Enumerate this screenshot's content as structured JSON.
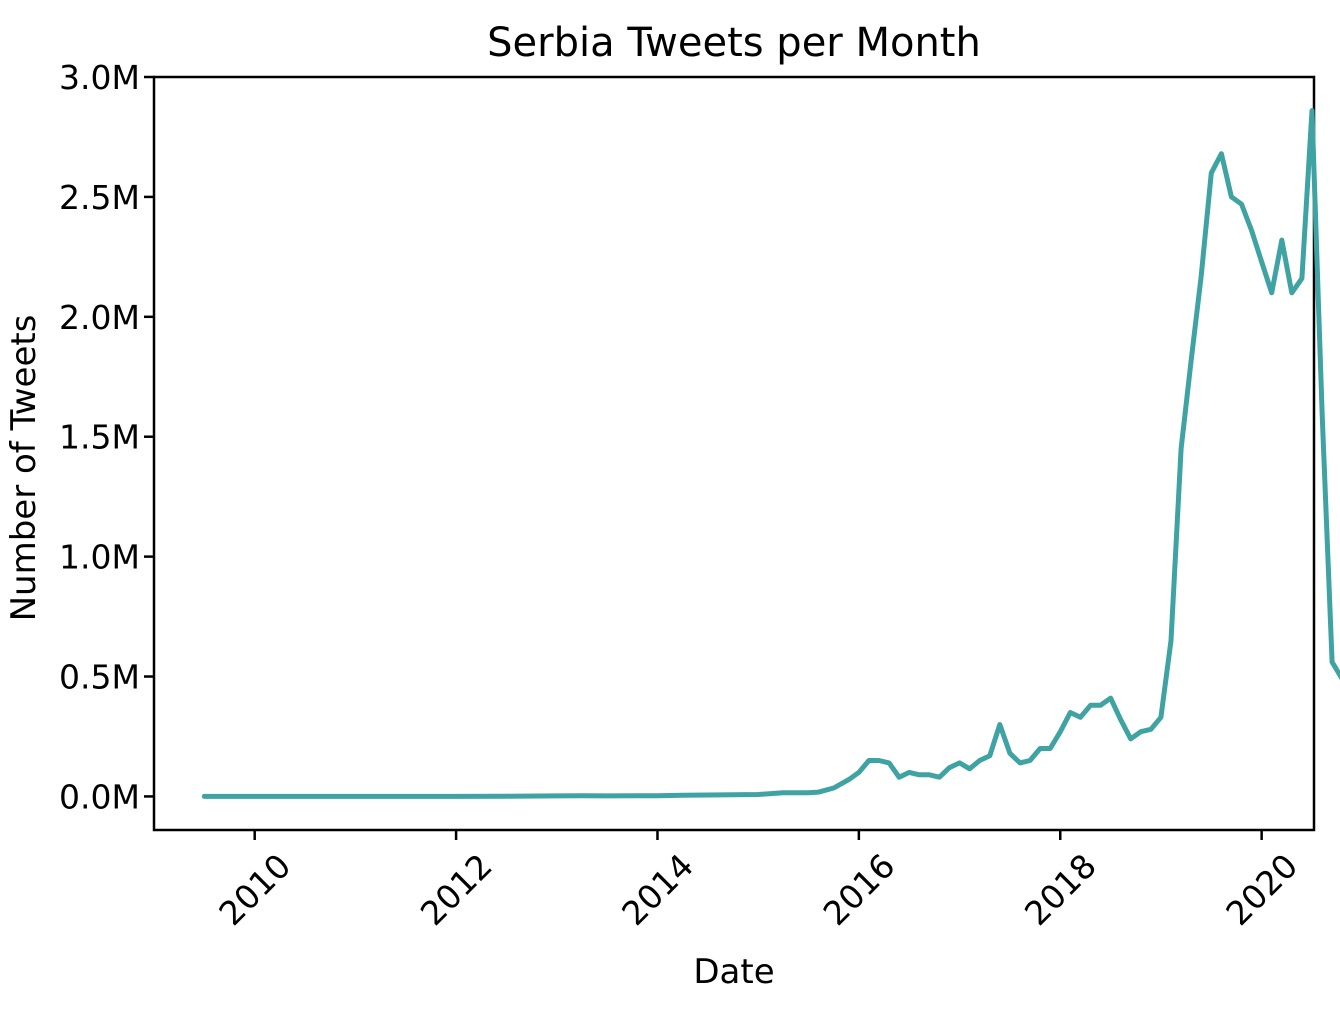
{
  "chart_data": {
    "type": "line",
    "title": "Serbia Tweets per Month",
    "xlabel": "Date",
    "ylabel": "Number of Tweets",
    "xlim": [
      2009.0,
      2020.52
    ],
    "ylim": [
      -140000,
      3000000
    ],
    "x_ticks": [
      {
        "value": 2010,
        "label": "2010"
      },
      {
        "value": 2012,
        "label": "2012"
      },
      {
        "value": 2014,
        "label": "2014"
      },
      {
        "value": 2016,
        "label": "2016"
      },
      {
        "value": 2018,
        "label": "2018"
      },
      {
        "value": 2020,
        "label": "2020"
      }
    ],
    "y_ticks": [
      {
        "value": 0,
        "label": "0.0M"
      },
      {
        "value": 500000,
        "label": "0.5M"
      },
      {
        "value": 1000000,
        "label": "1.0M"
      },
      {
        "value": 1500000,
        "label": "1.5M"
      },
      {
        "value": 2000000,
        "label": "2.0M"
      },
      {
        "value": 2500000,
        "label": "2.5M"
      },
      {
        "value": 3000000,
        "label": "3.0M"
      }
    ],
    "grid": false,
    "legend": "none",
    "series": [
      {
        "color": "#3fa3a3",
        "points": [
          [
            2009.5,
            0
          ],
          [
            2010.0,
            0
          ],
          [
            2011.0,
            0
          ],
          [
            2012.0,
            0
          ],
          [
            2012.5,
            1000
          ],
          [
            2013.0,
            2000
          ],
          [
            2013.25,
            3000
          ],
          [
            2013.5,
            2000
          ],
          [
            2014.0,
            3000
          ],
          [
            2014.25,
            5000
          ],
          [
            2014.5,
            6000
          ],
          [
            2014.75,
            7000
          ],
          [
            2015.0,
            8000
          ],
          [
            2015.25,
            15000
          ],
          [
            2015.5,
            15000
          ],
          [
            2015.6,
            18000
          ],
          [
            2015.75,
            35000
          ],
          [
            2015.9,
            70000
          ],
          [
            2016.0,
            100000
          ],
          [
            2016.1,
            150000
          ],
          [
            2016.2,
            150000
          ],
          [
            2016.3,
            140000
          ],
          [
            2016.4,
            80000
          ],
          [
            2016.5,
            100000
          ],
          [
            2016.6,
            90000
          ],
          [
            2016.7,
            90000
          ],
          [
            2016.8,
            80000
          ],
          [
            2016.9,
            120000
          ],
          [
            2017.0,
            140000
          ],
          [
            2017.1,
            115000
          ],
          [
            2017.2,
            150000
          ],
          [
            2017.3,
            170000
          ],
          [
            2017.4,
            300000
          ],
          [
            2017.5,
            180000
          ],
          [
            2017.6,
            140000
          ],
          [
            2017.7,
            150000
          ],
          [
            2017.8,
            200000
          ],
          [
            2017.9,
            200000
          ],
          [
            2018.0,
            270000
          ],
          [
            2018.1,
            350000
          ],
          [
            2018.2,
            330000
          ],
          [
            2018.3,
            380000
          ],
          [
            2018.4,
            380000
          ],
          [
            2018.5,
            410000
          ],
          [
            2018.6,
            320000
          ],
          [
            2018.7,
            240000
          ],
          [
            2018.8,
            270000
          ],
          [
            2018.9,
            280000
          ],
          [
            2019.0,
            330000
          ],
          [
            2019.1,
            650000
          ],
          [
            2019.2,
            1450000
          ],
          [
            2019.3,
            1820000
          ],
          [
            2019.4,
            2170000
          ],
          [
            2019.5,
            2600000
          ],
          [
            2019.6,
            2680000
          ],
          [
            2019.7,
            2500000
          ],
          [
            2019.8,
            2470000
          ],
          [
            2019.9,
            2360000
          ],
          [
            2020.0,
            2230000
          ],
          [
            2020.1,
            2100000
          ],
          [
            2020.2,
            2320000
          ],
          [
            2020.3,
            2100000
          ],
          [
            2020.4,
            2160000
          ],
          [
            2020.5,
            2860000
          ],
          [
            2020.6,
            1600000
          ],
          [
            2020.7,
            560000
          ],
          [
            2020.8,
            490000
          ]
        ]
      }
    ]
  }
}
